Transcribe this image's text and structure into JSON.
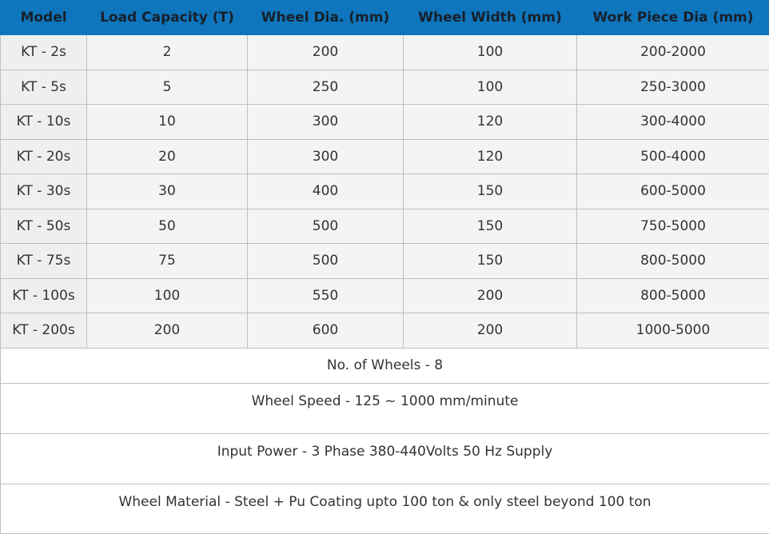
{
  "table": {
    "headers": [
      "Model",
      "Load Capacity (T)",
      "Wheel Dia. (mm)",
      "Wheel Width (mm)",
      "Work Piece Dia (mm)"
    ],
    "rows": [
      [
        "KT - 2s",
        "2",
        "200",
        "100",
        "200-2000"
      ],
      [
        "KT - 5s",
        "5",
        "250",
        "100",
        "250-3000"
      ],
      [
        "KT - 10s",
        "10",
        "300",
        "120",
        "300-4000"
      ],
      [
        "KT - 20s",
        "20",
        "300",
        "120",
        "500-4000"
      ],
      [
        "KT - 30s",
        "30",
        "400",
        "150",
        "600-5000"
      ],
      [
        "KT - 50s",
        "50",
        "500",
        "150",
        "750-5000"
      ],
      [
        "KT - 75s",
        "75",
        "500",
        "150",
        "800-5000"
      ],
      [
        "KT - 100s",
        "100",
        "550",
        "200",
        "800-5000"
      ],
      [
        "KT - 200s",
        "200",
        "600",
        "200",
        "1000-5000"
      ]
    ],
    "notes": [
      "No. of Wheels - 8",
      "Wheel Speed - 125 ~ 1000 mm/minute",
      "Input Power - 3 Phase 380-440Volts 50 Hz Supply",
      "Wheel Material - Steel + Pu Coating upto 100 ton & only steel beyond 100 ton"
    ]
  },
  "colors": {
    "header_bg": "#0f75bc",
    "header_text": "#17202b",
    "cell_bg": "#f4f4f4",
    "border": "#bfbfbf"
  }
}
